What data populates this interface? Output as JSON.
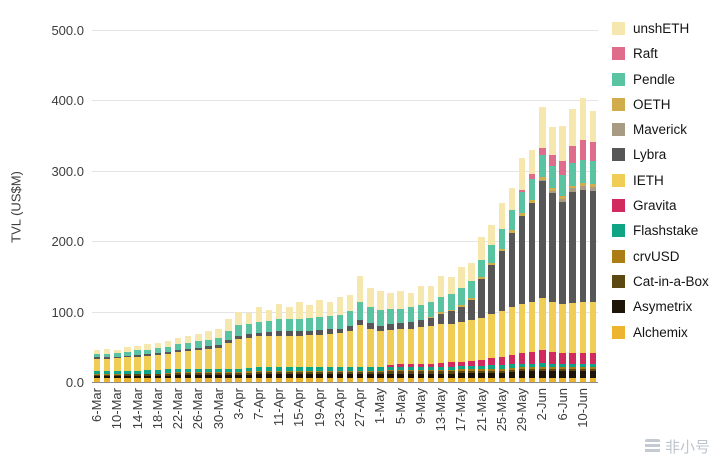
{
  "watermark": {
    "text": "非小号"
  },
  "chart_data": {
    "type": "bar",
    "stacked": true,
    "title": "",
    "xlabel": "",
    "ylabel": "TVL (US$M)",
    "ylim": [
      0,
      500
    ],
    "grid": "horizontal",
    "legend_position": "right",
    "y_ticks": [
      0,
      100,
      200,
      300,
      400,
      500
    ],
    "y_tick_labels": [
      "0.0",
      "100.0",
      "200.0",
      "300.0",
      "400.0",
      "500.0"
    ],
    "x": [
      "6-Mar",
      "8-Mar",
      "10-Mar",
      "12-Mar",
      "14-Mar",
      "16-Mar",
      "18-Mar",
      "20-Mar",
      "22-Mar",
      "24-Mar",
      "26-Mar",
      "28-Mar",
      "30-Mar",
      "1-Apr",
      "3-Apr",
      "5-Apr",
      "7-Apr",
      "9-Apr",
      "11-Apr",
      "13-Apr",
      "15-Apr",
      "17-Apr",
      "19-Apr",
      "21-Apr",
      "23-Apr",
      "25-Apr",
      "27-Apr",
      "29-Apr",
      "1-May",
      "3-May",
      "5-May",
      "7-May",
      "9-May",
      "11-May",
      "13-May",
      "15-May",
      "17-May",
      "19-May",
      "21-May",
      "23-May",
      "25-May",
      "27-May",
      "29-May",
      "31-May",
      "2-Jun",
      "4-Jun",
      "6-Jun",
      "8-Jun",
      "10-Jun",
      "12-Jun"
    ],
    "x_ticks": [
      "6-Mar",
      "10-Mar",
      "14-Mar",
      "18-Mar",
      "22-Mar",
      "26-Mar",
      "30-Mar",
      "3-Apr",
      "7-Apr",
      "11-Apr",
      "15-Apr",
      "19-Apr",
      "23-Apr",
      "27-Apr",
      "1-May",
      "5-May",
      "9-May",
      "13-May",
      "17-May",
      "21-May",
      "25-May",
      "29-May",
      "2-Jun",
      "6-Jun",
      "10-Jun"
    ],
    "legend_order": [
      "unshETH",
      "Raft",
      "Pendle",
      "OETH",
      "Maverick",
      "Lybra",
      "IETH",
      "Gravita",
      "Flashstake",
      "crvUSD",
      "Cat-in-a-Box",
      "Asymetrix",
      "Alchemix"
    ],
    "series": [
      {
        "name": "Alchemix",
        "color": "#EDB52F",
        "values": [
          5,
          5,
          5,
          5,
          5,
          5,
          5,
          5,
          5,
          5,
          5,
          5,
          5,
          5,
          5,
          5,
          5,
          5,
          5,
          5,
          5,
          5,
          5,
          5,
          5,
          5,
          5,
          5,
          5,
          5,
          5,
          5,
          5,
          5,
          5,
          5,
          5,
          5,
          5,
          5,
          5,
          5,
          6,
          6,
          6,
          6,
          6,
          6,
          6,
          6
        ]
      },
      {
        "name": "Asymetrix",
        "color": "#1D1507",
        "values": [
          3,
          3,
          3,
          4,
          4,
          4,
          4,
          4,
          5,
          5,
          5,
          5,
          5,
          5,
          5,
          5,
          6,
          6,
          6,
          6,
          6,
          6,
          6,
          6,
          6,
          6,
          6,
          6,
          6,
          7,
          7,
          7,
          7,
          7,
          7,
          7,
          8,
          8,
          8,
          8,
          8,
          9,
          9,
          9,
          10,
          10,
          10,
          10,
          10,
          10
        ]
      },
      {
        "name": "Cat-in-a-Box",
        "color": "#5C4813",
        "values": [
          2,
          2,
          2,
          2,
          2,
          2,
          2,
          3,
          3,
          3,
          3,
          3,
          3,
          3,
          3,
          3,
          3,
          3,
          3,
          3,
          3,
          3,
          3,
          3,
          3,
          3,
          3,
          3,
          3,
          3,
          3,
          3,
          3,
          3,
          3,
          3,
          3,
          3,
          3,
          3,
          3,
          3,
          3,
          3,
          3,
          3,
          3,
          3,
          3,
          3
        ]
      },
      {
        "name": "crvUSD",
        "color": "#AD7D15",
        "values": [
          1,
          1,
          1,
          1,
          1,
          1,
          1,
          1,
          1,
          1,
          1,
          1,
          1,
          1,
          1,
          2,
          2,
          2,
          2,
          2,
          2,
          2,
          2,
          2,
          2,
          2,
          2,
          2,
          2,
          2,
          2,
          2,
          2,
          2,
          2,
          2,
          2,
          2,
          2,
          3,
          3,
          3,
          3,
          3,
          3,
          3,
          3,
          3,
          3,
          3
        ]
      },
      {
        "name": "Flashstake",
        "color": "#0FA483",
        "values": [
          4,
          4,
          4,
          4,
          4,
          5,
          5,
          5,
          5,
          5,
          5,
          5,
          5,
          5,
          5,
          5,
          5,
          5,
          5,
          5,
          5,
          5,
          5,
          5,
          5,
          5,
          5,
          5,
          5,
          5,
          5,
          5,
          5,
          5,
          5,
          5,
          5,
          5,
          5,
          5,
          5,
          5,
          5,
          5,
          5,
          4,
          4,
          4,
          4,
          4
        ]
      },
      {
        "name": "Gravita",
        "color": "#D12A5E",
        "values": [
          0,
          0,
          0,
          0,
          0,
          0,
          0,
          0,
          0,
          0,
          0,
          0,
          0,
          0,
          0,
          0,
          0,
          0,
          0,
          0,
          0,
          0,
          0,
          0,
          0,
          0,
          0,
          0,
          1,
          2,
          3,
          3,
          4,
          4,
          5,
          6,
          6,
          7,
          8,
          10,
          12,
          14,
          15,
          16,
          18,
          16,
          15,
          15,
          15,
          15
        ]
      },
      {
        "name": "IETH",
        "color": "#F0CE55",
        "values": [
          18,
          18,
          19,
          19,
          20,
          20,
          21,
          22,
          24,
          25,
          26,
          28,
          30,
          36,
          42,
          43,
          44,
          44,
          45,
          45,
          45,
          46,
          46,
          47,
          48,
          52,
          60,
          55,
          50,
          50,
          50,
          51,
          52,
          53,
          55,
          55,
          56,
          58,
          60,
          62,
          65,
          68,
          70,
          72,
          75,
          72,
          70,
          71,
          72,
          72
        ]
      },
      {
        "name": "Lybra",
        "color": "#575757",
        "values": [
          2,
          2,
          2,
          2,
          3,
          3,
          3,
          3,
          3,
          3,
          4,
          4,
          4,
          5,
          5,
          5,
          5,
          6,
          6,
          6,
          6,
          6,
          7,
          7,
          7,
          7,
          7,
          8,
          8,
          9,
          9,
          10,
          10,
          12,
          15,
          18,
          22,
          28,
          55,
          70,
          85,
          105,
          125,
          140,
          165,
          155,
          145,
          158,
          160,
          158
        ]
      },
      {
        "name": "Maverick",
        "color": "#A79B83",
        "values": [
          0,
          0,
          0,
          0,
          0,
          0,
          0,
          0,
          0,
          0,
          0,
          0,
          0,
          0,
          0,
          0,
          0,
          0,
          0,
          0,
          0,
          0,
          0,
          0,
          0,
          0,
          0,
          0,
          0,
          0,
          0,
          0,
          0,
          0,
          0,
          0,
          0,
          0,
          0,
          0,
          0,
          0,
          0,
          0,
          2,
          3,
          4,
          5,
          6,
          6
        ]
      },
      {
        "name": "OETH",
        "color": "#D1AC4A",
        "values": [
          0,
          0,
          0,
          0,
          0,
          0,
          0,
          0,
          0,
          0,
          0,
          0,
          0,
          0,
          0,
          0,
          0,
          0,
          0,
          0,
          0,
          0,
          0,
          0,
          0,
          0,
          0,
          0,
          0,
          0,
          0,
          0,
          0,
          2,
          2,
          2,
          3,
          3,
          3,
          3,
          3,
          4,
          4,
          4,
          4,
          4,
          4,
          4,
          4,
          4
        ]
      },
      {
        "name": "Pendle",
        "color": "#5AC4A2",
        "values": [
          5,
          5,
          5,
          6,
          6,
          6,
          7,
          7,
          8,
          8,
          9,
          9,
          10,
          12,
          15,
          15,
          16,
          16,
          17,
          17,
          18,
          18,
          18,
          19,
          19,
          21,
          25,
          23,
          22,
          21,
          20,
          20,
          21,
          21,
          22,
          22,
          23,
          24,
          25,
          26,
          28,
          29,
          30,
          31,
          32,
          31,
          30,
          32,
          33,
          33
        ]
      },
      {
        "name": "Raft",
        "color": "#E06C8B",
        "values": [
          0,
          0,
          0,
          0,
          0,
          0,
          0,
          0,
          0,
          0,
          0,
          0,
          0,
          0,
          0,
          0,
          0,
          0,
          0,
          0,
          0,
          0,
          0,
          0,
          0,
          0,
          0,
          0,
          0,
          0,
          0,
          0,
          0,
          0,
          0,
          0,
          0,
          0,
          0,
          0,
          0,
          0,
          3,
          6,
          10,
          15,
          20,
          25,
          28,
          27
        ]
      },
      {
        "name": "unshETH",
        "color": "#F5E7AE",
        "values": [
          5,
          7,
          5,
          7,
          6,
          8,
          7,
          9,
          8,
          10,
          10,
          13,
          12,
          17,
          18,
          15,
          21,
          16,
          22,
          17,
          24,
          18,
          24,
          19,
          26,
          22,
          38,
          26,
          27,
          22,
          25,
          21,
          27,
          22,
          29,
          24,
          30,
          26,
          32,
          28,
          38,
          31,
          45,
          34,
          58,
          40,
          50,
          52,
          60,
          44
        ]
      }
    ]
  }
}
